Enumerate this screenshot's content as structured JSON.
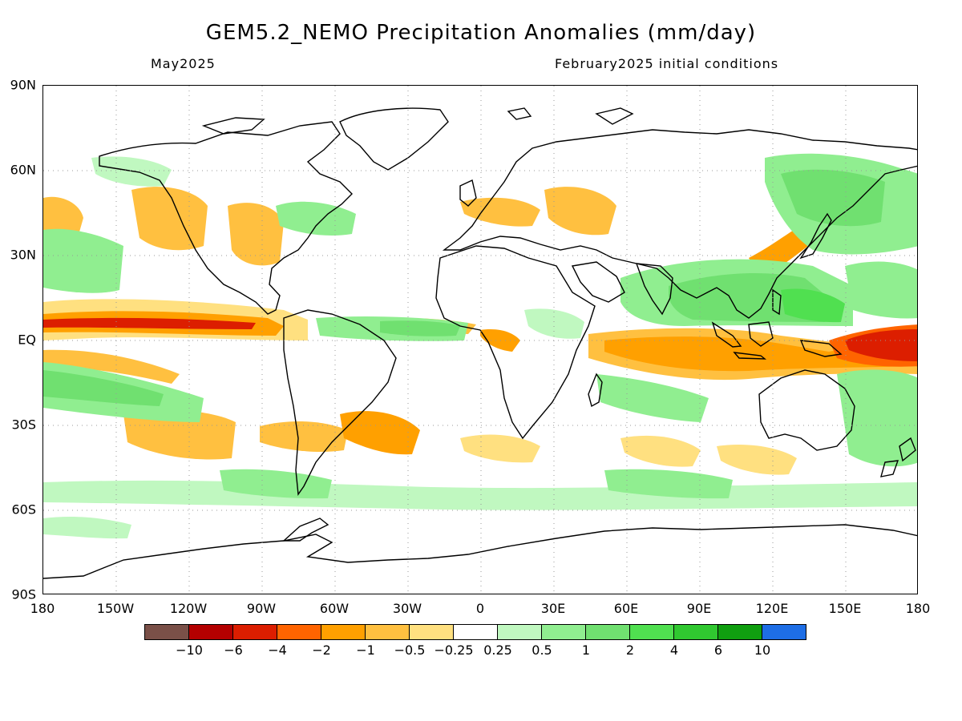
{
  "header": {
    "title": "GEM5.2_NEMO Precipitation Anomalies (mm/day)",
    "subtitle_left": "May2025",
    "subtitle_right": "February2025 initial conditions"
  },
  "axes": {
    "lat_labels": [
      "90N",
      "60N",
      "30N",
      "EQ",
      "30S",
      "60S",
      "90S"
    ],
    "lon_labels": [
      "180",
      "150W",
      "120W",
      "90W",
      "60W",
      "30W",
      "0",
      "30E",
      "60E",
      "90E",
      "120E",
      "150E",
      "180"
    ]
  },
  "colorbar": {
    "colors": [
      "#7a5048",
      "#b40000",
      "#dc1e00",
      "#ff6400",
      "#ffa000",
      "#ffc040",
      "#ffe080",
      "#ffffff",
      "#c0f8c0",
      "#90ee90",
      "#70e070",
      "#50e050",
      "#30c830",
      "#109f10",
      "#1e6ee6"
    ],
    "labels": [
      "−10",
      "−6",
      "−4",
      "−2",
      "−1",
      "−0.5",
      "−0.25",
      "0.25",
      "0.5",
      "1",
      "2",
      "4",
      "6",
      "10"
    ]
  },
  "anomaly_colors": {
    "dry_strong": "#dc1e00",
    "dry_moderate": "#ff6400",
    "dry_mild": "#ffa000",
    "dry_weak": "#ffc040",
    "dry_faint": "#ffe080",
    "wet_faint": "#c0f8c0",
    "wet_weak": "#90ee90",
    "wet_mild": "#70e070",
    "wet_moderate": "#50e050"
  }
}
